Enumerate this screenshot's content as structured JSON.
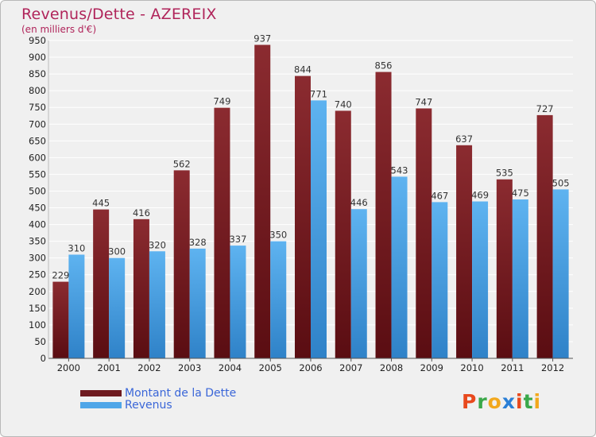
{
  "header": {
    "title": "Revenus/Dette - AZEREIX",
    "subtitle": "(en milliers d'€)"
  },
  "chart_data": {
    "type": "bar",
    "title": "Revenus/Dette - AZEREIX",
    "subtitle": "(en milliers d'€)",
    "categories": [
      "2000",
      "2001",
      "2002",
      "2003",
      "2004",
      "2005",
      "2006",
      "2007",
      "2008",
      "2009",
      "2010",
      "2011",
      "2012"
    ],
    "series": [
      {
        "name": "Montant de la Dette",
        "color": "#6e1a1f",
        "values": [
          229,
          445,
          416,
          562,
          749,
          937,
          844,
          740,
          856,
          747,
          637,
          535,
          727
        ]
      },
      {
        "name": "Revenus",
        "color": "#4fa6e8",
        "values": [
          310,
          300,
          320,
          328,
          337,
          350,
          771,
          446,
          543,
          467,
          469,
          475,
          505
        ]
      }
    ],
    "ylim": [
      0,
      950
    ],
    "ytick_step": 50,
    "grid": true,
    "legend_position": "bottom-left"
  },
  "legend": {
    "items": [
      {
        "label": "Montant de la Dette",
        "color": "#6e1a1f"
      },
      {
        "label": "Revenus",
        "color": "#4fa6e8"
      }
    ]
  },
  "logo": {
    "text": "Proxiti",
    "letter_colors": [
      "#e8491d",
      "#3aa84a",
      "#f2a81d",
      "#2a7fd6",
      "#e8491d",
      "#3aa84a",
      "#f2a81d"
    ]
  }
}
